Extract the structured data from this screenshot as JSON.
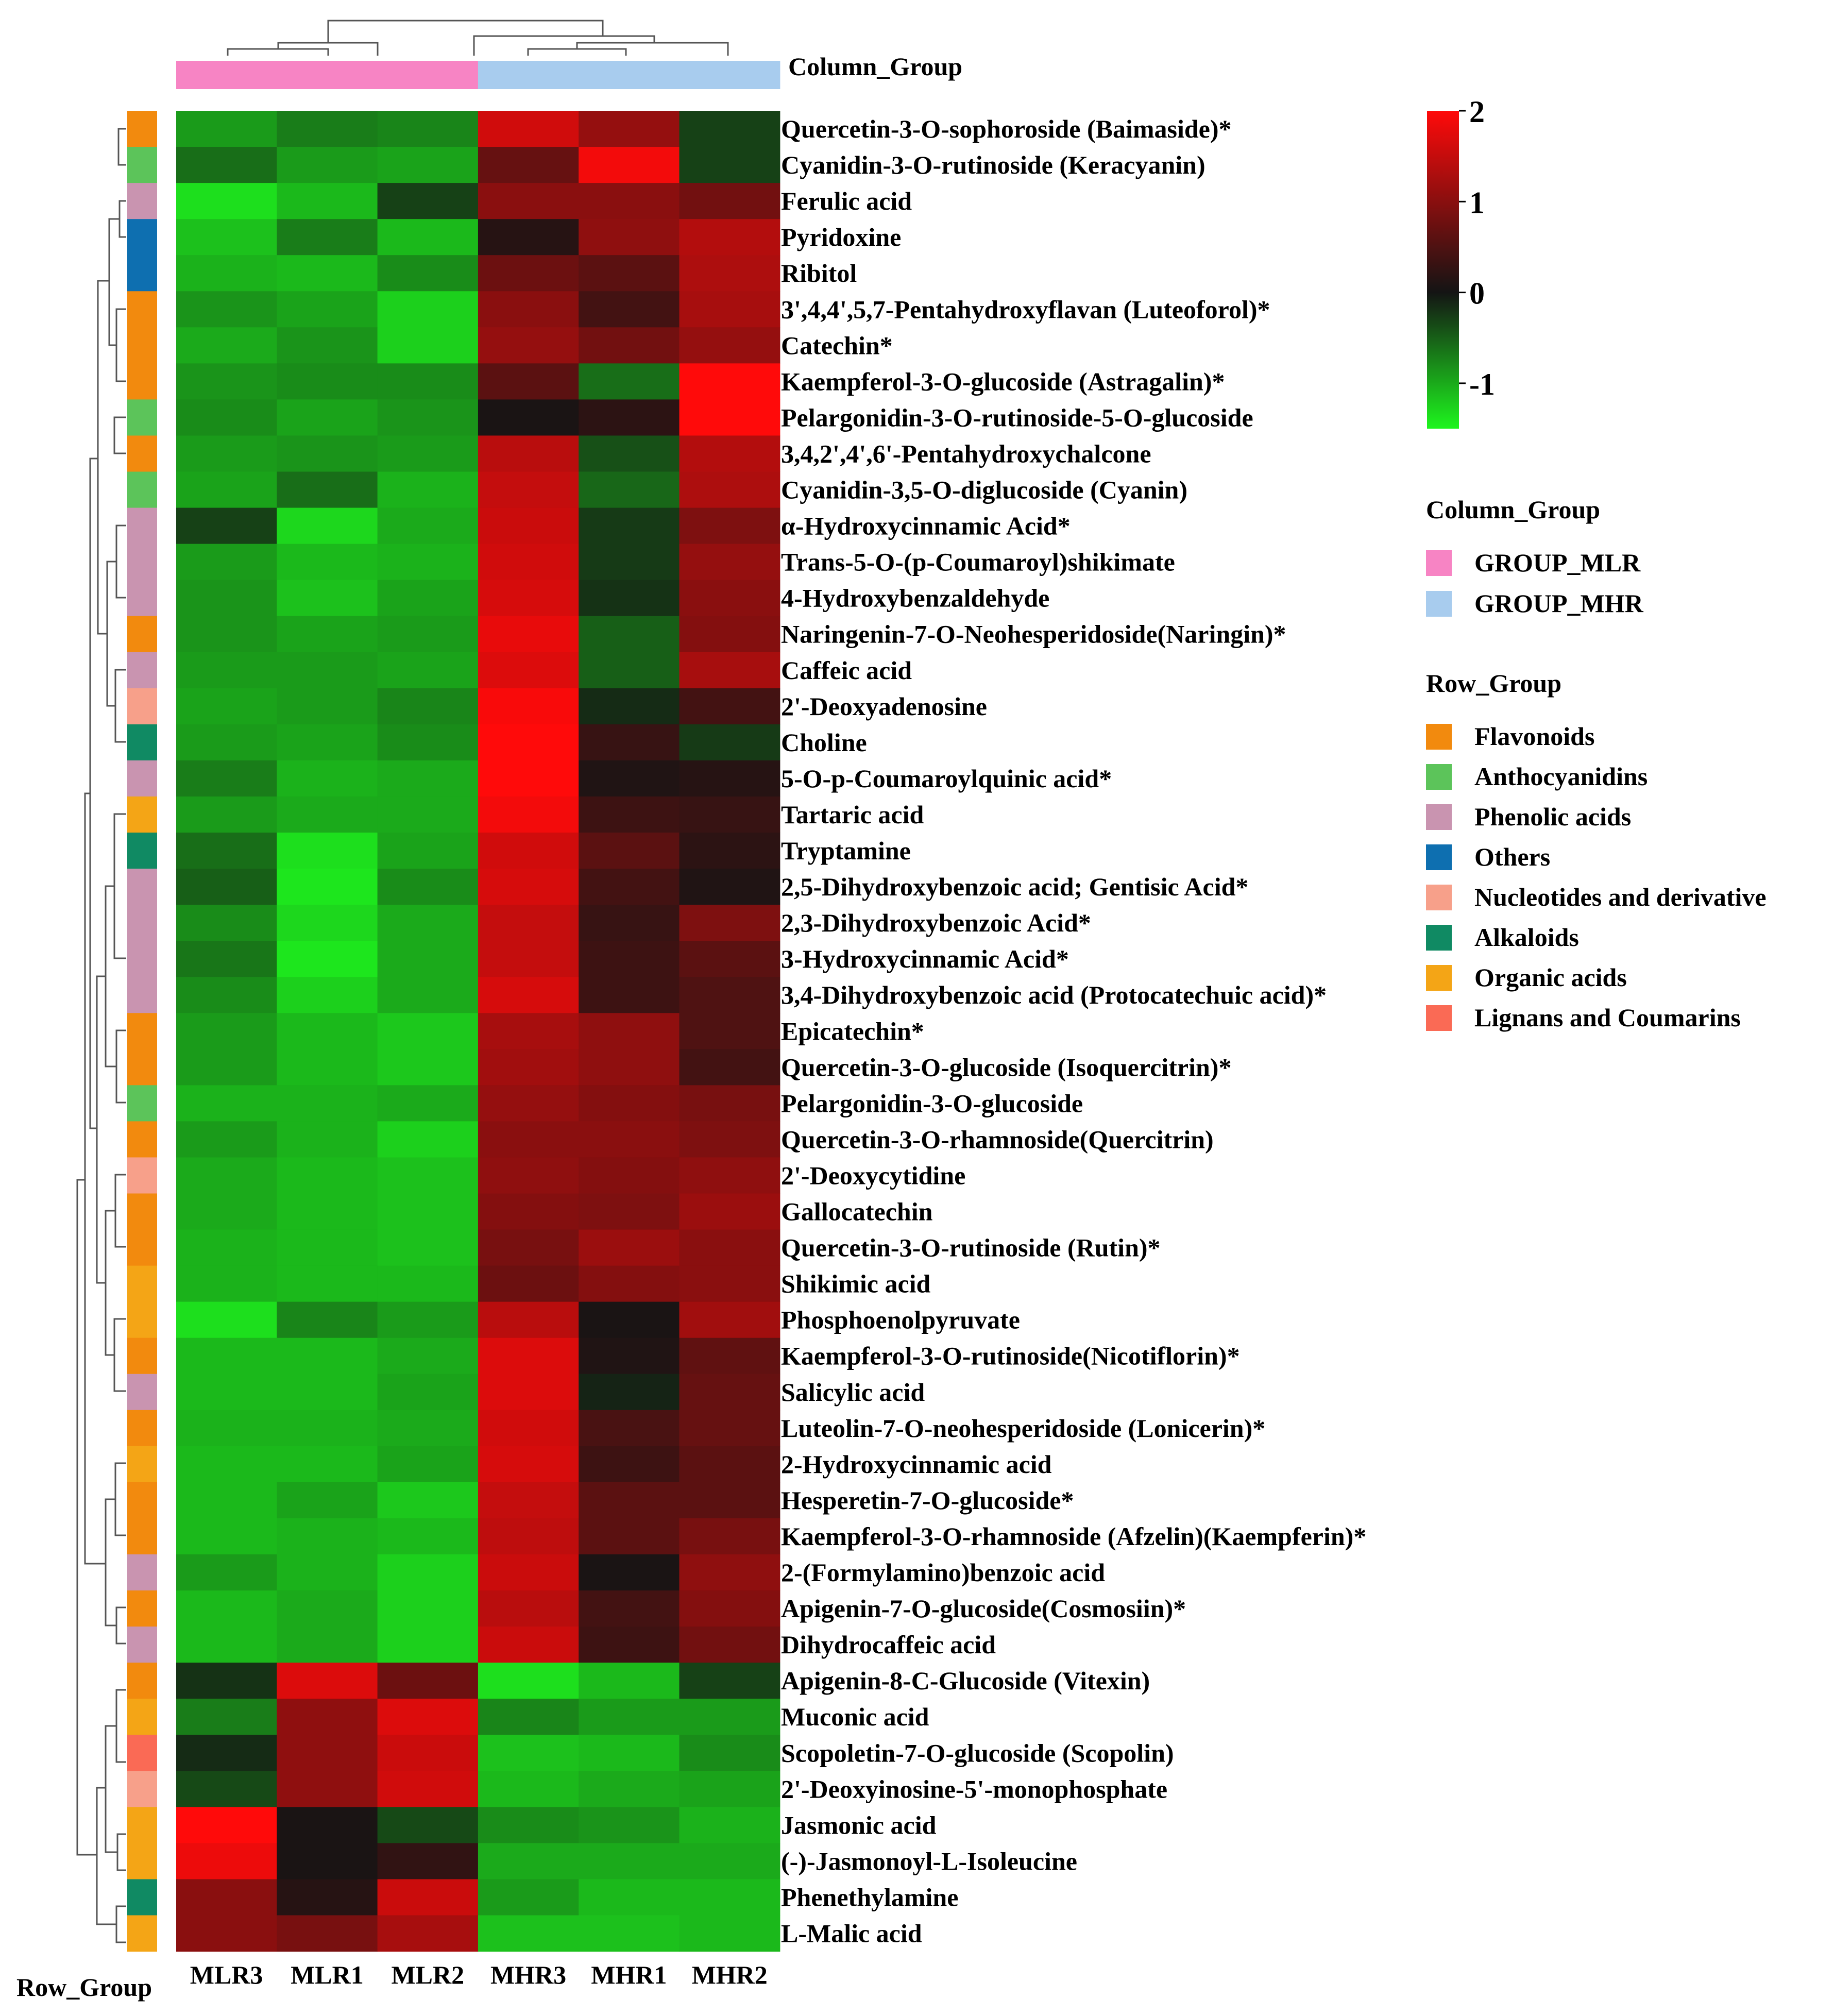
{
  "chart_data": {
    "type": "heatmap",
    "title": "",
    "columns": [
      "MLR3",
      "MLR1",
      "MLR2",
      "MHR3",
      "MHR1",
      "MHR2"
    ],
    "column_groups": [
      "GROUP_MLR",
      "GROUP_MLR",
      "GROUP_MLR",
      "GROUP_MHR",
      "GROUP_MHR",
      "GROUP_MHR"
    ],
    "column_group_title": "Column_Group",
    "row_group_title": "Row_Group",
    "color_scale": {
      "min": -1.5,
      "max": 2,
      "ticks": [
        2,
        1,
        0,
        -1
      ],
      "tick_labels": [
        "2",
        "1",
        "0",
        "-1"
      ],
      "colors": {
        "low": "#1ef51e",
        "mid": "#141414",
        "high": "#ff0a0a"
      }
    },
    "column_group_legend": [
      {
        "label": "GROUP_MLR",
        "color": "#f784c4"
      },
      {
        "label": "GROUP_MHR",
        "color": "#a8ccee"
      }
    ],
    "row_group_legend": [
      {
        "label": "Flavonoids",
        "color": "#f28a0e"
      },
      {
        "label": "Anthocyanidins",
        "color": "#5cc45a"
      },
      {
        "label": "Phenolic acids",
        "color": "#c994b0"
      },
      {
        "label": "Others",
        "color": "#0e6fb0"
      },
      {
        "label": "Nucleotides and derivative",
        "color": "#f7a08a"
      },
      {
        "label": "Alkaloids",
        "color": "#108a63"
      },
      {
        "label": "Organic acids",
        "color": "#f4a516"
      },
      {
        "label": "Lignans and Coumarins",
        "color": "#fa6a55"
      }
    ],
    "rows": [
      {
        "name": "Quercetin-3-O-sophoroside (Baimaside)*",
        "group": "Flavonoids",
        "values": [
          -0.9,
          -0.7,
          -0.75,
          1.6,
          1.1,
          -0.3
        ]
      },
      {
        "name": "Cyanidin-3-O-rutinoside (Keracyanin)",
        "group": "Anthocyanidins",
        "values": [
          -0.6,
          -0.9,
          -0.95,
          0.7,
          1.9,
          -0.3
        ]
      },
      {
        "name": "Ferulic acid",
        "group": "Phenolic acids",
        "values": [
          -1.35,
          -1.1,
          -0.3,
          1.0,
          1.0,
          0.8
        ]
      },
      {
        "name": "Pyridoxine",
        "group": "Others",
        "values": [
          -1.15,
          -0.7,
          -1.1,
          0.15,
          1.05,
          1.35
        ]
      },
      {
        "name": "Ribitol",
        "group": "Others",
        "values": [
          -1.05,
          -1.1,
          -0.8,
          0.75,
          0.6,
          1.3
        ]
      },
      {
        "name": "3',4,4',5,7-Pentahydroxyflavan (Luteoforol)*",
        "group": "Flavonoids",
        "values": [
          -0.85,
          -0.95,
          -1.25,
          1.0,
          0.4,
          1.25
        ]
      },
      {
        "name": "Catechin*",
        "group": "Flavonoids",
        "values": [
          -1.0,
          -0.85,
          -1.25,
          1.1,
          0.8,
          1.1
        ]
      },
      {
        "name": "Kaempferol-3-O-glucoside (Astragalin)*",
        "group": "Flavonoids",
        "values": [
          -0.85,
          -0.8,
          -0.8,
          0.6,
          -0.6,
          2.0
        ]
      },
      {
        "name": "Pelargonidin-3-O-rutinoside-5-O-glucoside",
        "group": "Anthocyanidins",
        "values": [
          -0.8,
          -0.95,
          -0.85,
          0.05,
          0.2,
          2.0
        ]
      },
      {
        "name": "3,4,2',4',6'-Pentahydroxychalcone",
        "group": "Flavonoids",
        "values": [
          -0.9,
          -0.85,
          -0.9,
          1.4,
          -0.4,
          1.35
        ]
      },
      {
        "name": "Cyanidin-3,5-O-diglucoside (Cyanin)",
        "group": "Anthocyanidins",
        "values": [
          -0.95,
          -0.6,
          -1.05,
          1.5,
          -0.55,
          1.3
        ]
      },
      {
        "name": "α-Hydroxycinnamic Acid*",
        "group": "Phenolic acids",
        "values": [
          -0.3,
          -1.3,
          -1.0,
          1.55,
          -0.25,
          0.9
        ]
      },
      {
        "name": "Trans-5-O-(p-Coumaroyl)shikimate",
        "group": "Phenolic acids",
        "values": [
          -0.9,
          -1.1,
          -1.05,
          1.6,
          -0.25,
          1.1
        ]
      },
      {
        "name": "4-Hydroxybenzaldehyde",
        "group": "Phenolic acids",
        "values": [
          -0.85,
          -1.15,
          -0.95,
          1.65,
          -0.2,
          1.0
        ]
      },
      {
        "name": "Naringenin-7-O-Neohesperidoside(Naringin)*",
        "group": "Flavonoids",
        "values": [
          -0.85,
          -0.95,
          -0.9,
          1.8,
          -0.5,
          0.95
        ]
      },
      {
        "name": "Caffeic acid",
        "group": "Phenolic acids",
        "values": [
          -0.9,
          -0.9,
          -0.95,
          1.7,
          -0.5,
          1.25
        ]
      },
      {
        "name": "2'-Deoxyadenosine",
        "group": "Nucleotides and derivative",
        "values": [
          -0.95,
          -0.9,
          -0.75,
          1.95,
          -0.15,
          0.4
        ]
      },
      {
        "name": "Choline",
        "group": "Alkaloids",
        "values": [
          -0.9,
          -0.95,
          -0.8,
          2.0,
          0.3,
          -0.25
        ]
      },
      {
        "name": "5-O-p-Coumaroylquinic acid*",
        "group": "Phenolic acids",
        "values": [
          -0.7,
          -1.05,
          -1.0,
          2.0,
          0.1,
          0.15
        ]
      },
      {
        "name": "Tartaric acid",
        "group": "Organic acids",
        "values": [
          -0.9,
          -1.0,
          -1.0,
          1.9,
          0.35,
          0.3
        ]
      },
      {
        "name": "Tryptamine",
        "group": "Alkaloids",
        "values": [
          -0.6,
          -1.35,
          -0.95,
          1.6,
          0.6,
          0.2
        ]
      },
      {
        "name": "2,5-Dihydroxybenzoic acid; Gentisic Acid*",
        "group": "Phenolic acids",
        "values": [
          -0.5,
          -1.4,
          -0.8,
          1.65,
          0.4,
          0.1
        ]
      },
      {
        "name": "2,3-Dihydroxybenzoic Acid*",
        "group": "Phenolic acids",
        "values": [
          -0.8,
          -1.3,
          -1.0,
          1.5,
          0.3,
          0.9
        ]
      },
      {
        "name": "3-Hydroxycinnamic Acid*",
        "group": "Phenolic acids",
        "values": [
          -0.65,
          -1.4,
          -1.0,
          1.5,
          0.35,
          0.6
        ]
      },
      {
        "name": "3,4-Dihydroxybenzoic acid (Protocatechuic acid)*",
        "group": "Phenolic acids",
        "values": [
          -0.8,
          -1.25,
          -1.0,
          1.65,
          0.35,
          0.5
        ]
      },
      {
        "name": "Epicatechin*",
        "group": "Flavonoids",
        "values": [
          -0.9,
          -1.1,
          -1.2,
          1.25,
          1.05,
          0.5
        ]
      },
      {
        "name": "Quercetin-3-O-glucoside (Isoquercitrin)*",
        "group": "Flavonoids",
        "values": [
          -0.9,
          -1.1,
          -1.2,
          1.2,
          1.05,
          0.4
        ]
      },
      {
        "name": "Pelargonidin-3-O-glucoside",
        "group": "Anthocyanidins",
        "values": [
          -1.05,
          -1.05,
          -1.0,
          1.1,
          0.95,
          0.85
        ]
      },
      {
        "name": "Quercetin-3-O-rhamnoside(Quercitrin)",
        "group": "Flavonoids",
        "values": [
          -0.9,
          -1.05,
          -1.25,
          1.0,
          1.0,
          0.9
        ]
      },
      {
        "name": "2'-Deoxycytidine",
        "group": "Nucleotides and derivative",
        "values": [
          -1.0,
          -1.1,
          -1.15,
          1.05,
          0.95,
          1.05
        ]
      },
      {
        "name": "Gallocatechin",
        "group": "Flavonoids",
        "values": [
          -1.0,
          -1.1,
          -1.15,
          0.95,
          0.9,
          1.15
        ]
      },
      {
        "name": "Quercetin-3-O-rutinoside (Rutin)*",
        "group": "Flavonoids",
        "values": [
          -1.05,
          -1.1,
          -1.15,
          0.85,
          1.15,
          1.0
        ]
      },
      {
        "name": "Shikimic acid",
        "group": "Organic acids",
        "values": [
          -1.05,
          -1.1,
          -1.1,
          0.75,
          0.95,
          1.0
        ]
      },
      {
        "name": "Phosphoenolpyruvate",
        "group": "Organic acids",
        "values": [
          -1.35,
          -0.75,
          -0.9,
          1.4,
          0.05,
          1.2
        ]
      },
      {
        "name": "Kaempferol-3-O-rutinoside(Nicotiflorin)*",
        "group": "Flavonoids",
        "values": [
          -1.1,
          -1.1,
          -1.0,
          1.7,
          0.1,
          0.65
        ]
      },
      {
        "name": "Salicylic acid",
        "group": "Phenolic acids",
        "values": [
          -1.1,
          -1.1,
          -0.95,
          1.7,
          -0.1,
          0.7
        ]
      },
      {
        "name": "Luteolin-7-O-neohesperidoside (Lonicerin)*",
        "group": "Flavonoids",
        "values": [
          -1.05,
          -1.05,
          -1.0,
          1.6,
          0.45,
          0.7
        ]
      },
      {
        "name": "2-Hydroxycinnamic acid",
        "group": "Organic acids",
        "values": [
          -1.1,
          -1.1,
          -0.95,
          1.65,
          0.35,
          0.6
        ]
      },
      {
        "name": "Hesperetin-7-O-glucoside*",
        "group": "Flavonoids",
        "values": [
          -1.1,
          -0.95,
          -1.2,
          1.5,
          0.6,
          0.6
        ]
      },
      {
        "name": "Kaempferol-3-O-rhamnoside (Afzelin)(Kaempferin)*",
        "group": "Flavonoids",
        "values": [
          -1.1,
          -1.05,
          -1.1,
          1.45,
          0.6,
          0.85
        ]
      },
      {
        "name": "2-(Formylamino)benzoic acid",
        "group": "Phenolic acids",
        "values": [
          -0.9,
          -1.05,
          -1.25,
          1.55,
          0.05,
          1.05
        ]
      },
      {
        "name": "Apigenin-7-O-glucoside(Cosmosiin)*",
        "group": "Flavonoids",
        "values": [
          -1.1,
          -1.0,
          -1.25,
          1.4,
          0.4,
          0.95
        ]
      },
      {
        "name": "Dihydrocaffeic acid",
        "group": "Phenolic acids",
        "values": [
          -1.1,
          -1.0,
          -1.25,
          1.55,
          0.35,
          0.8
        ]
      },
      {
        "name": "Apigenin-8-C-Glucoside (Vitexin)",
        "group": "Flavonoids",
        "values": [
          -0.2,
          1.7,
          0.75,
          -1.35,
          -1.1,
          -0.3
        ]
      },
      {
        "name": "Muconic acid",
        "group": "Organic acids",
        "values": [
          -0.7,
          1.05,
          1.7,
          -0.75,
          -0.9,
          -0.9
        ]
      },
      {
        "name": "Scopoletin-7-O-glucoside (Scopolin)",
        "group": "Lignans and Coumarins",
        "values": [
          -0.15,
          1.05,
          1.55,
          -1.15,
          -1.1,
          -0.8
        ]
      },
      {
        "name": "2'-Deoxyinosine-5'-monophosphate",
        "group": "Nucleotides and derivative",
        "values": [
          -0.35,
          1.05,
          1.6,
          -1.1,
          -1.0,
          -0.95
        ]
      },
      {
        "name": "Jasmonic acid",
        "group": "Organic acids",
        "values": [
          2.0,
          0.05,
          -0.35,
          -0.8,
          -0.85,
          -1.05
        ]
      },
      {
        "name": "(-)-Jasmonoyl-L-Isoleucine",
        "group": "Organic acids",
        "values": [
          1.85,
          0.05,
          0.25,
          -1.0,
          -1.0,
          -1.0
        ]
      },
      {
        "name": "Phenethylamine",
        "group": "Alkaloids",
        "values": [
          1.0,
          0.15,
          1.55,
          -0.9,
          -1.1,
          -1.1
        ]
      },
      {
        "name": "L-Malic acid",
        "group": "Organic acids",
        "values": [
          1.0,
          0.85,
          1.25,
          -1.15,
          -1.15,
          -1.1
        ]
      }
    ]
  }
}
